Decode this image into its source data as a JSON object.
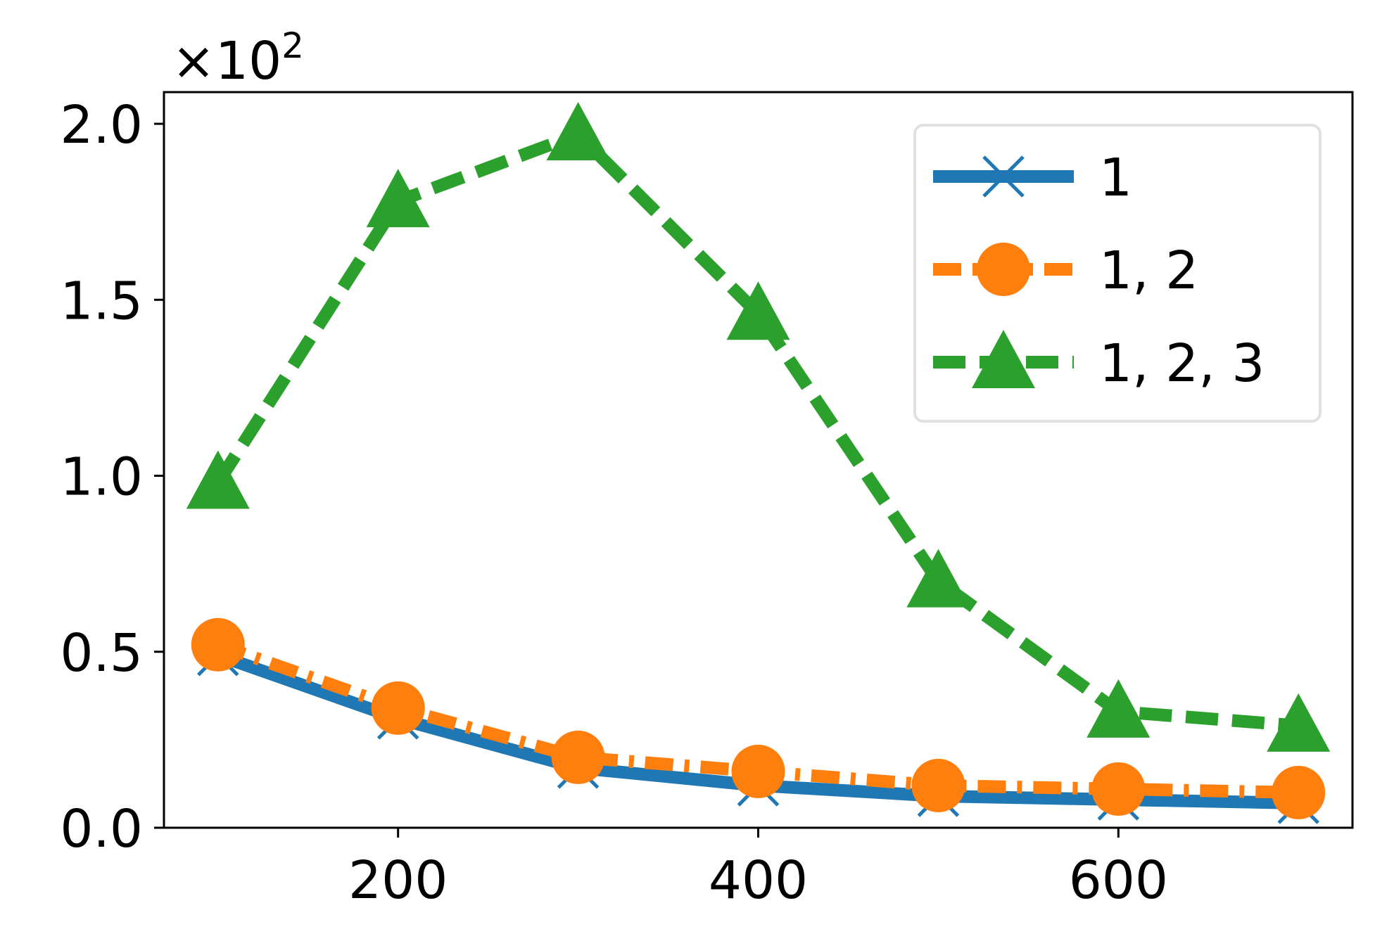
{
  "chart_data": {
    "type": "line",
    "title": "",
    "xlabel": "",
    "ylabel": "",
    "y_offset_text": "×10",
    "y_offset_exponent": "2",
    "xlim": [
      70,
      730
    ],
    "ylim": [
      0,
      2.09
    ],
    "x": [
      100,
      200,
      300,
      400,
      500,
      600,
      700
    ],
    "x_ticks": [
      200,
      400,
      600
    ],
    "x_tick_labels": [
      "200",
      "400",
      "600"
    ],
    "y_ticks": [
      0,
      0.5,
      1.0,
      1.5,
      2.0
    ],
    "y_tick_labels": [
      "0.0",
      "0.5",
      "1.0",
      "1.5",
      "2.0"
    ],
    "grid": false,
    "legend_position": "upper right",
    "series": [
      {
        "name": "1",
        "values": [
          0.49,
          0.31,
          0.17,
          0.12,
          0.09,
          0.08,
          0.07
        ],
        "color": "#1f77b4",
        "marker": "x",
        "linestyle": "solid"
      },
      {
        "name": "1, 2",
        "values": [
          0.52,
          0.34,
          0.2,
          0.16,
          0.12,
          0.11,
          0.1
        ],
        "color": "#ff7f0e",
        "marker": "circle",
        "linestyle": "dashdot"
      },
      {
        "name": "1, 2, 3",
        "values": [
          0.98,
          1.78,
          1.97,
          1.46,
          0.7,
          0.33,
          0.29
        ],
        "color": "#2ca02c",
        "marker": "triangle",
        "linestyle": "dashed"
      }
    ]
  }
}
